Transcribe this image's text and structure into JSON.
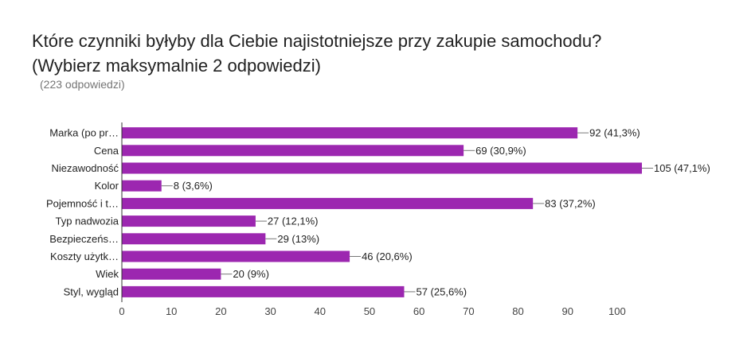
{
  "chart_data": {
    "type": "bar",
    "orientation": "horizontal",
    "title_line1": "Które czynniki byłyby dla Ciebie najistotniejsze przy zakupie samochodu?",
    "title_line2": "(Wybierz maksymalnie 2 odpowiedzi)",
    "subtitle": "(223 odpowiedzi)",
    "categories": [
      "Marka (po pr…",
      "Cena",
      "Niezawodność",
      "Kolor",
      "Pojemność i t…",
      "Typ nadwozia",
      "Bezpieczeńs…",
      "Koszty użytk…",
      "Wiek",
      "Styl, wygląd"
    ],
    "values": [
      92,
      69,
      105,
      8,
      83,
      27,
      29,
      46,
      20,
      57
    ],
    "value_labels": [
      "92 (41,3%)",
      "69 (30,9%)",
      "105 (47,1%)",
      "8 (3,6%)",
      "83 (37,2%)",
      "27 (12,1%)",
      "29 (13%)",
      "46 (20,6%)",
      "20 (9%)",
      "57 (25,6%)"
    ],
    "xlim": [
      0,
      105
    ],
    "xticks": [
      0,
      10,
      20,
      30,
      40,
      50,
      60,
      70,
      80,
      90,
      100
    ],
    "grid": false,
    "bar_color": "#9c27b0",
    "legend": "none"
  }
}
